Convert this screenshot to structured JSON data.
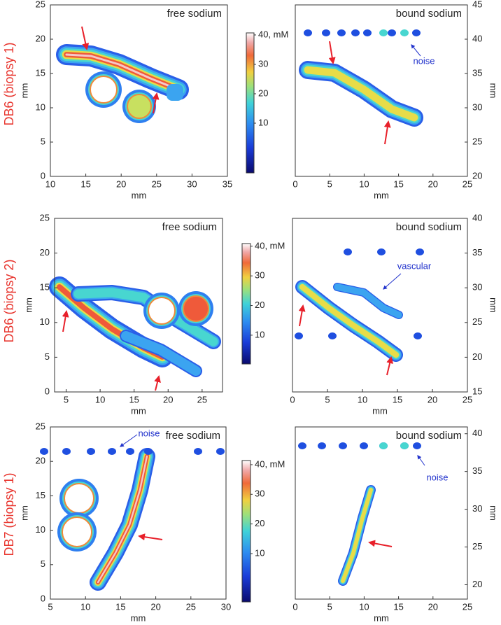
{
  "figure": {
    "rows": [
      {
        "label": "DB6 (biopsy 1)",
        "panels": [
          {
            "title": "free sodium",
            "x_label": "mm",
            "y_label": "mm",
            "y_axis_side": "left",
            "xlim": [
              10,
              35
            ],
            "ylim": [
              0,
              25
            ],
            "xticks": [
              10,
              15,
              20,
              25,
              30,
              35
            ],
            "yticks": [
              0,
              5,
              10,
              15,
              20,
              25
            ]
          },
          {
            "title": "bound sodium",
            "x_label": "mm",
            "y_label": "mm",
            "y_axis_side": "right",
            "xlim": [
              0,
              25
            ],
            "ylim": [
              20,
              45
            ],
            "xticks": [
              0,
              5,
              10,
              15,
              20,
              25
            ],
            "yticks": [
              20,
              25,
              30,
              35,
              40,
              45
            ],
            "annotations": [
              "noise"
            ]
          }
        ],
        "colorbar": {
          "clim": [
            -6.9,
            40.7
          ],
          "ticks": [
            10,
            20,
            30,
            {
              "value": 40,
              "label": "40, mM"
            }
          ]
        }
      },
      {
        "label": "DB6 (biopsy 2)",
        "panels": [
          {
            "title": "free sodium",
            "x_label": "mm",
            "y_label": "mm",
            "y_axis_side": "left",
            "xlim": [
              3.3,
              28
            ],
            "ylim": [
              0,
              25
            ],
            "xticks": [
              5,
              10,
              15,
              20,
              25
            ],
            "yticks": [
              0,
              5,
              10,
              15,
              20,
              25
            ]
          },
          {
            "title": "bound sodium",
            "x_label": "mm",
            "y_label": "mm",
            "y_axis_side": "right",
            "xlim": [
              0,
              25
            ],
            "ylim": [
              15,
              40
            ],
            "xticks": [
              0,
              5,
              10,
              15,
              20,
              25
            ],
            "yticks": [
              15,
              20,
              25,
              30,
              35,
              40
            ],
            "annotations": [
              "vascular"
            ]
          }
        ],
        "colorbar": {
          "clim": [
            0.3,
            40.9
          ],
          "ticks": [
            10,
            20,
            30,
            {
              "value": 40,
              "label": "40, mM"
            }
          ]
        }
      },
      {
        "label": "DB7 (biopsy 1)",
        "panels": [
          {
            "title": "free sodium",
            "x_label": "mm",
            "y_label": "mm",
            "y_axis_side": "left",
            "xlim": [
              5,
              30
            ],
            "ylim": [
              0,
              25
            ],
            "xticks": [
              5,
              10,
              15,
              20,
              25,
              30
            ],
            "yticks": [
              0,
              5,
              10,
              15,
              20,
              25
            ],
            "annotations": [
              "noise"
            ]
          },
          {
            "title": "bound sodium",
            "x_label": "mm",
            "y_label": "mm",
            "y_axis_side": "right",
            "xlim": [
              0,
              25
            ],
            "ylim": [
              18.1,
              40.9
            ],
            "xticks": [
              0,
              5,
              10,
              15,
              20,
              25
            ],
            "yticks": [
              20,
              25,
              30,
              35,
              40
            ],
            "annotations": [
              "noise"
            ]
          }
        ],
        "colorbar": {
          "clim": [
            -6.3,
            41.4
          ],
          "ticks": [
            10,
            20,
            30,
            {
              "value": 40,
              "label": "40, mM"
            }
          ]
        }
      }
    ]
  }
}
